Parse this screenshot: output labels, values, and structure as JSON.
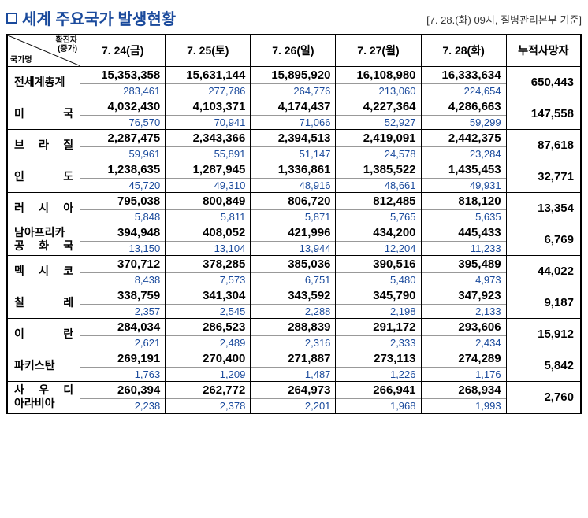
{
  "header": {
    "title": "세계 주요국가 발생현황",
    "subtitle": "[7. 28.(화) 09시, 질병관리본부 기준]"
  },
  "table": {
    "corner": {
      "top": "확진자",
      "top_sub": "(증가)",
      "bottom": "국가명"
    },
    "columns": [
      "7. 24(금)",
      "7. 25(토)",
      "7. 26(일)",
      "7. 27(월)",
      "7. 28(화)",
      "누적사망자"
    ],
    "rows": [
      {
        "country": "전세계총계",
        "values": [
          {
            "total": "15,353,358",
            "inc": "283,461"
          },
          {
            "total": "15,631,144",
            "inc": "277,786"
          },
          {
            "total": "15,895,920",
            "inc": "264,776"
          },
          {
            "total": "16,108,980",
            "inc": "213,060"
          },
          {
            "total": "16,333,634",
            "inc": "224,654"
          }
        ],
        "deaths": "650,443"
      },
      {
        "country": "미　　국",
        "values": [
          {
            "total": "4,032,430",
            "inc": "76,570"
          },
          {
            "total": "4,103,371",
            "inc": "70,941"
          },
          {
            "total": "4,174,437",
            "inc": "71,066"
          },
          {
            "total": "4,227,364",
            "inc": "52,927"
          },
          {
            "total": "4,286,663",
            "inc": "59,299"
          }
        ],
        "deaths": "147,558"
      },
      {
        "country": "브 라 질",
        "values": [
          {
            "total": "2,287,475",
            "inc": "59,961"
          },
          {
            "total": "2,343,366",
            "inc": "55,891"
          },
          {
            "total": "2,394,513",
            "inc": "51,147"
          },
          {
            "total": "2,419,091",
            "inc": "24,578"
          },
          {
            "total": "2,442,375",
            "inc": "23,284"
          }
        ],
        "deaths": "87,618"
      },
      {
        "country": "인　　도",
        "values": [
          {
            "total": "1,238,635",
            "inc": "45,720"
          },
          {
            "total": "1,287,945",
            "inc": "49,310"
          },
          {
            "total": "1,336,861",
            "inc": "48,916"
          },
          {
            "total": "1,385,522",
            "inc": "48,661"
          },
          {
            "total": "1,435,453",
            "inc": "49,931"
          }
        ],
        "deaths": "32,771"
      },
      {
        "country": "러 시 아",
        "values": [
          {
            "total": "795,038",
            "inc": "5,848"
          },
          {
            "total": "800,849",
            "inc": "5,811"
          },
          {
            "total": "806,720",
            "inc": "5,871"
          },
          {
            "total": "812,485",
            "inc": "5,765"
          },
          {
            "total": "818,120",
            "inc": "5,635"
          }
        ],
        "deaths": "13,354"
      },
      {
        "country": "남아프리카\n공 화 국",
        "values": [
          {
            "total": "394,948",
            "inc": "13,150"
          },
          {
            "total": "408,052",
            "inc": "13,104"
          },
          {
            "total": "421,996",
            "inc": "13,944"
          },
          {
            "total": "434,200",
            "inc": "12,204"
          },
          {
            "total": "445,433",
            "inc": "11,233"
          }
        ],
        "deaths": "6,769"
      },
      {
        "country": "멕 시 코",
        "values": [
          {
            "total": "370,712",
            "inc": "8,438"
          },
          {
            "total": "378,285",
            "inc": "7,573"
          },
          {
            "total": "385,036",
            "inc": "6,751"
          },
          {
            "total": "390,516",
            "inc": "5,480"
          },
          {
            "total": "395,489",
            "inc": "4,973"
          }
        ],
        "deaths": "44,022"
      },
      {
        "country": "칠　　레",
        "values": [
          {
            "total": "338,759",
            "inc": "2,357"
          },
          {
            "total": "341,304",
            "inc": "2,545"
          },
          {
            "total": "343,592",
            "inc": "2,288"
          },
          {
            "total": "345,790",
            "inc": "2,198"
          },
          {
            "total": "347,923",
            "inc": "2,133"
          }
        ],
        "deaths": "9,187"
      },
      {
        "country": "이　　란",
        "values": [
          {
            "total": "284,034",
            "inc": "2,621"
          },
          {
            "total": "286,523",
            "inc": "2,489"
          },
          {
            "total": "288,839",
            "inc": "2,316"
          },
          {
            "total": "291,172",
            "inc": "2,333"
          },
          {
            "total": "293,606",
            "inc": "2,434"
          }
        ],
        "deaths": "15,912"
      },
      {
        "country": "파키스탄",
        "values": [
          {
            "total": "269,191",
            "inc": "1,763"
          },
          {
            "total": "270,400",
            "inc": "1,209"
          },
          {
            "total": "271,887",
            "inc": "1,487"
          },
          {
            "total": "273,113",
            "inc": "1,226"
          },
          {
            "total": "274,289",
            "inc": "1,176"
          }
        ],
        "deaths": "5,842"
      },
      {
        "country": "사 우 디\n아라비아",
        "values": [
          {
            "total": "260,394",
            "inc": "2,238"
          },
          {
            "total": "262,772",
            "inc": "2,378"
          },
          {
            "total": "264,973",
            "inc": "2,201"
          },
          {
            "total": "266,941",
            "inc": "1,968"
          },
          {
            "total": "268,934",
            "inc": "1,993"
          }
        ],
        "deaths": "2,760"
      }
    ]
  }
}
